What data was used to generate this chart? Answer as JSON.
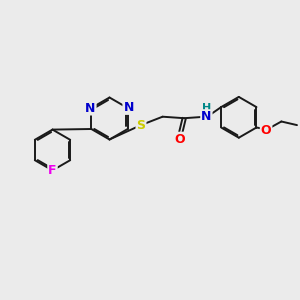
{
  "bg_color": "#ebebeb",
  "bond_color": "#1a1a1a",
  "bond_width": 1.4,
  "atom_colors": {
    "N": "#0000cc",
    "S": "#cccc00",
    "O": "#ff0000",
    "F": "#ee00ee",
    "NH": "#008888",
    "C": "#1a1a1a"
  },
  "font_size": 8.5,
  "dbo": 0.045
}
